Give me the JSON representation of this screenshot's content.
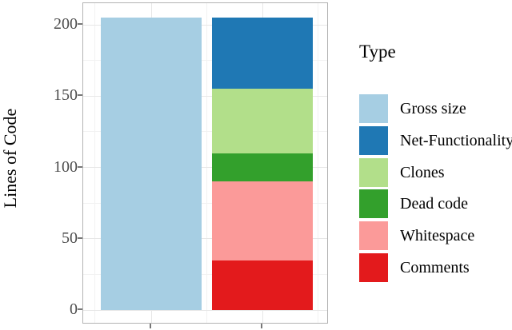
{
  "chart_data": {
    "type": "bar",
    "stacked": true,
    "title": "",
    "xlabel": "",
    "ylabel": "Lines of Code",
    "ylim": [
      -10,
      215
    ],
    "yticks": [
      0,
      50,
      100,
      150,
      200
    ],
    "yticks_minor": [
      25,
      75,
      125,
      175
    ],
    "x_labels": [
      "",
      ""
    ],
    "grid": true,
    "bars": [
      {
        "segments": [
          {
            "type": "Gross size",
            "value": 205
          }
        ]
      },
      {
        "segments": [
          {
            "type": "Comments",
            "value": 35
          },
          {
            "type": "Whitespace",
            "value": 55
          },
          {
            "type": "Dead code",
            "value": 20
          },
          {
            "type": "Clones",
            "value": 45
          },
          {
            "type": "Net-Functionality",
            "value": 50
          }
        ]
      }
    ],
    "colors": {
      "Gross size": "#a6cee3",
      "Net-Functionality": "#1f78b4",
      "Clones": "#b2df8a",
      "Dead code": "#33a02c",
      "Whitespace": "#fb9a99",
      "Comments": "#e31a1c"
    },
    "legend": {
      "title": "Type",
      "position": "right",
      "items": [
        "Gross size",
        "Net-Functionality",
        "Clones",
        "Dead code",
        "Whitespace",
        "Comments"
      ]
    }
  },
  "style": {
    "background": "#ffffff",
    "panel_border": "#b3b3b3",
    "grid_major": "#e7e7e7",
    "grid_minor": "#f2f2f2",
    "tick_color": "#777777",
    "tick_label_color": "#4d4d4d",
    "text_color": "#000000"
  }
}
